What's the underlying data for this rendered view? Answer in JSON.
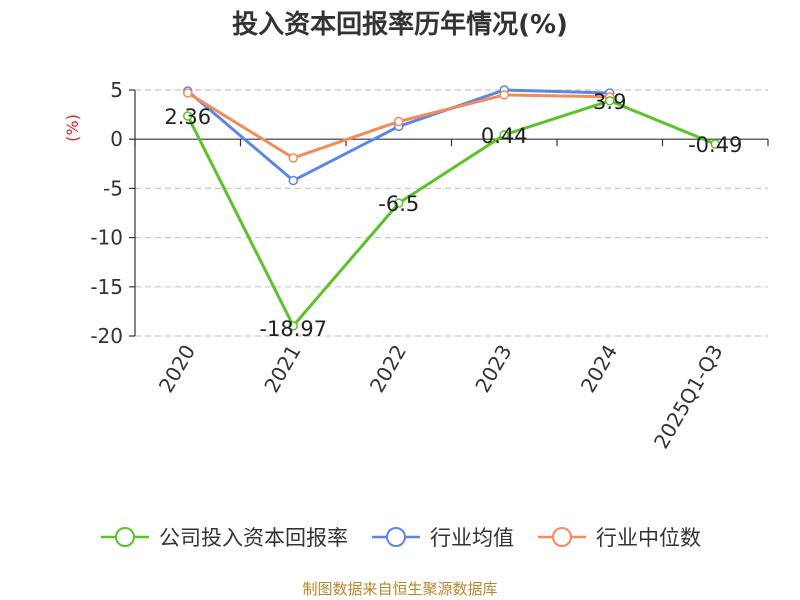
{
  "chart_data": {
    "type": "line",
    "title": "投入资本回报率历年情况(%)",
    "ylabel": "(%)",
    "xlabel": "",
    "categories": [
      "2020",
      "2021",
      "2022",
      "2023",
      "2024",
      "2025Q1-Q3"
    ],
    "ylim": [
      -20,
      5
    ],
    "yticks": [
      5,
      0,
      -5,
      -10,
      -15,
      -20
    ],
    "grid": true,
    "legend_position": "bottom",
    "series": [
      {
        "name": "公司投入资本回报率",
        "color": "#5cc229",
        "values": [
          2.36,
          -18.97,
          -6.5,
          0.44,
          3.9,
          -0.49
        ],
        "data_labels": [
          "2.36",
          "-18.97",
          "-6.5",
          "0.44",
          "3.9",
          "-0.49"
        ]
      },
      {
        "name": "行业均值",
        "color": "#5b86e5",
        "values": [
          4.9,
          -4.2,
          1.3,
          5.0,
          4.7,
          null
        ]
      },
      {
        "name": "行业中位数",
        "color": "#f28c5a",
        "values": [
          4.7,
          -1.9,
          1.8,
          4.5,
          4.3,
          null
        ]
      }
    ]
  },
  "source_note": "制图数据来自恒生聚源数据库"
}
